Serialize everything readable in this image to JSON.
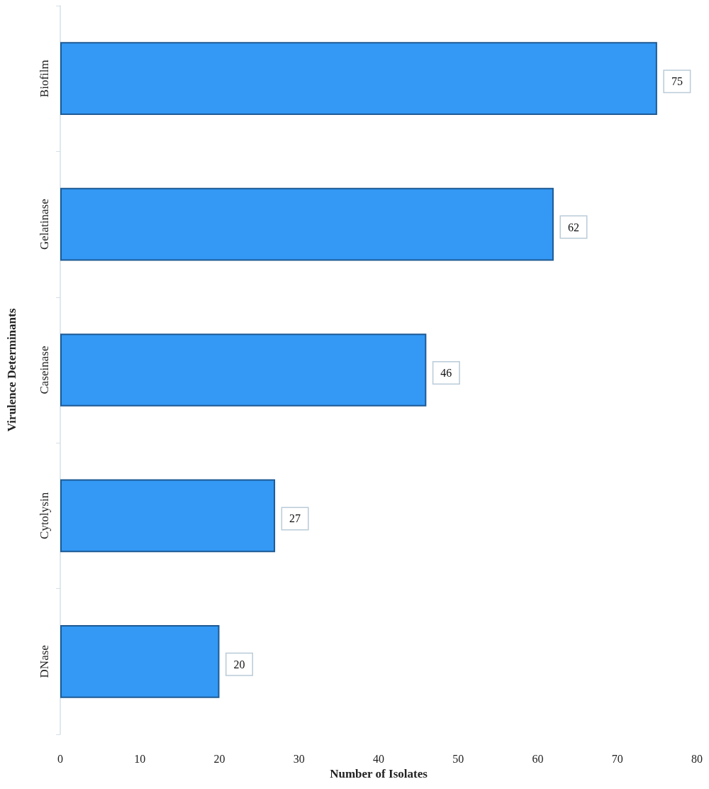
{
  "chart_data": {
    "type": "bar",
    "orientation": "horizontal",
    "categories": [
      "Biofilm",
      "Gelatinase",
      "Caseinase",
      "Cytolysin",
      "DNase"
    ],
    "values": [
      75,
      62,
      46,
      27,
      20
    ],
    "color": "#3399f5",
    "xlabel": "Number of Isolates",
    "ylabel": "Virulence Determinants",
    "xlim": [
      0,
      80
    ],
    "xticks": [
      0,
      10,
      20,
      30,
      40,
      50,
      60,
      70,
      80
    ],
    "data_labels": true
  }
}
